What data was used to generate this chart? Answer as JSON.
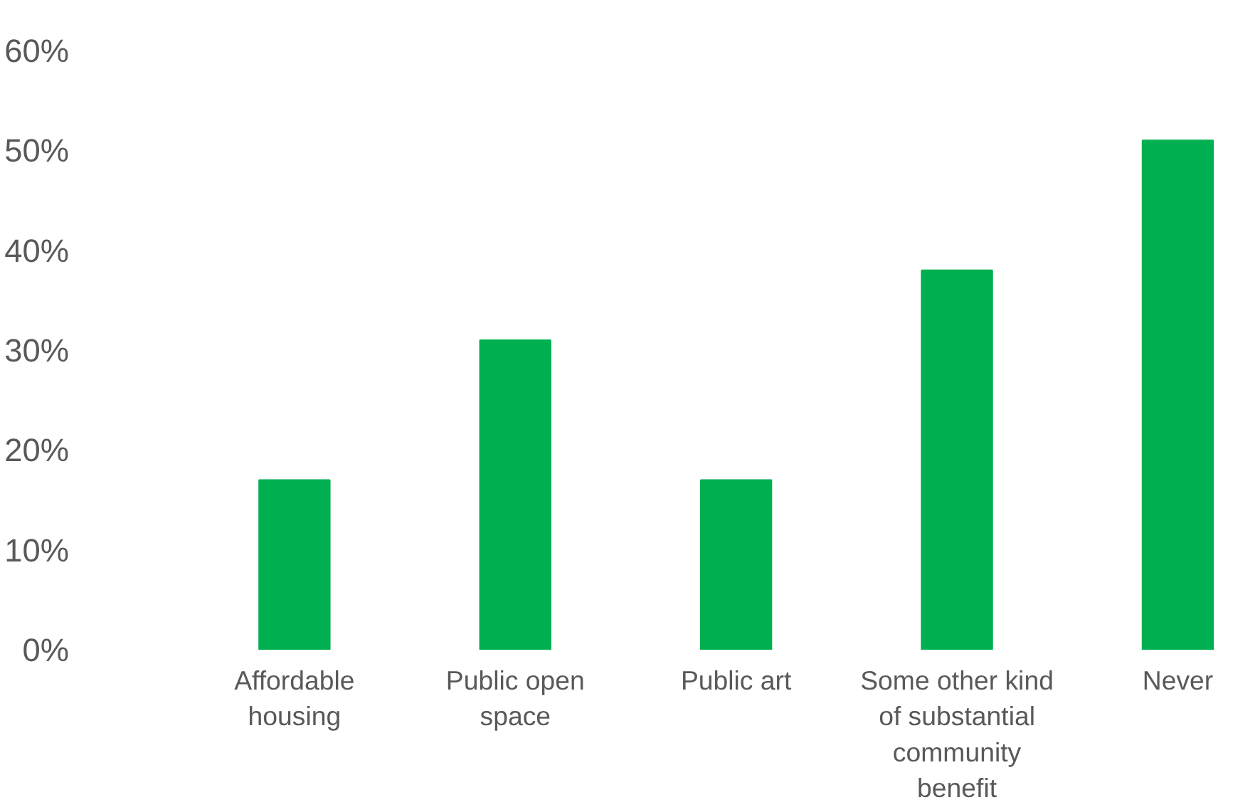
{
  "chart_data": {
    "type": "bar",
    "categories": [
      "Affordable housing",
      "Public open space",
      "Public art",
      "Some other kind of substantial community benefit",
      "Never"
    ],
    "values": [
      0.17,
      0.31,
      0.17,
      0.38,
      0.51
    ],
    "color": "#00b050",
    "ylim": [
      0,
      0.6
    ],
    "yticks": [
      {
        "value": 0,
        "label": "0%"
      },
      {
        "value": 0.1,
        "label": "10%"
      },
      {
        "value": 0.2,
        "label": "20%"
      },
      {
        "value": 0.3,
        "label": "30%"
      },
      {
        "value": 0.4,
        "label": "40%"
      },
      {
        "value": 0.5,
        "label": "50%"
      },
      {
        "value": 0.6,
        "label": "60%"
      }
    ],
    "grid": false
  }
}
